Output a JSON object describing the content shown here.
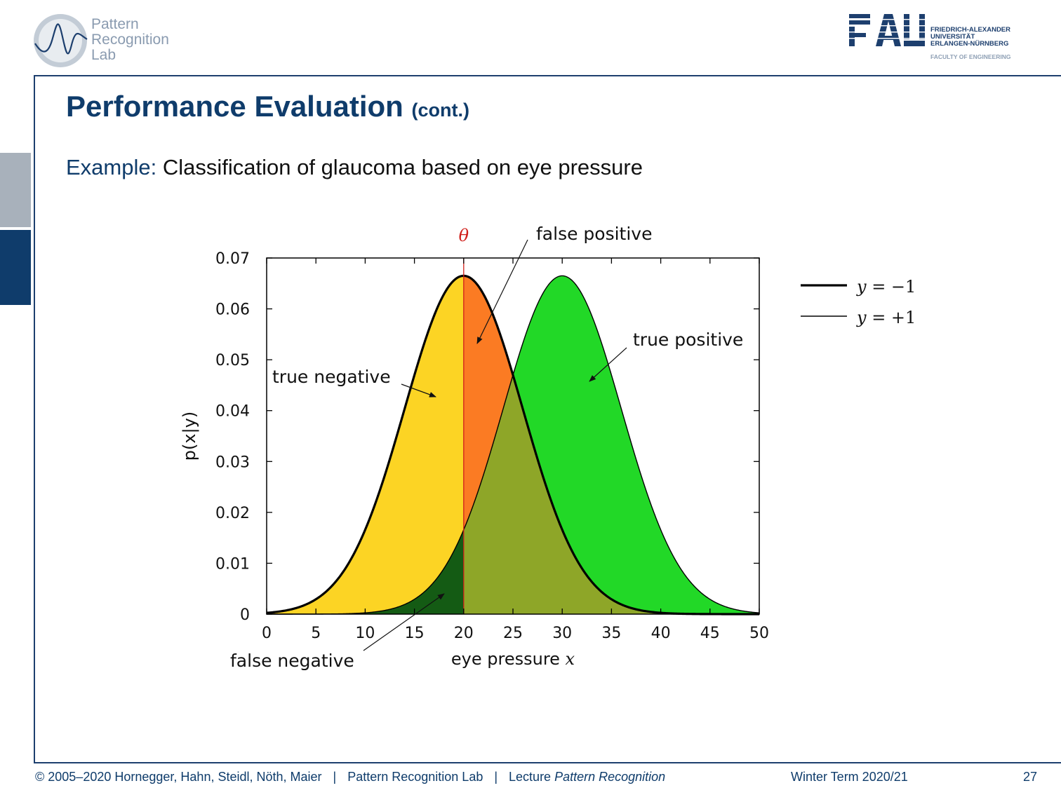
{
  "header": {
    "lab_logo_lines": [
      "Pattern",
      "Recognition",
      "Lab"
    ],
    "university_lines": [
      "FRIEDRICH-ALEXANDER",
      "UNIVERSITÄT",
      "ERLANGEN-NÜRNBERG"
    ],
    "faculty": "FACULTY OF ENGINEERING",
    "brand_color": "#0f3c6b"
  },
  "slide": {
    "title": "Performance Evaluation",
    "title_suffix": "(cont.)",
    "subtitle_label": "Example:",
    "subtitle_text": "Classification of glaucoma based on eye pressure"
  },
  "chart_data": {
    "type": "area",
    "xlabel": "eye pressure",
    "xlabel_var": "x",
    "ylabel": "p(x|y)",
    "xlim": [
      0,
      50
    ],
    "ylim": [
      0,
      0.07
    ],
    "x_ticks": [
      0,
      5,
      10,
      15,
      20,
      25,
      30,
      35,
      40,
      45,
      50
    ],
    "y_ticks": [
      0,
      0.01,
      0.02,
      0.03,
      0.04,
      0.05,
      0.06,
      0.07
    ],
    "y_tick_labels": [
      "0",
      "0.01",
      "0.02",
      "0.03",
      "0.04",
      "0.05",
      "0.06",
      "0.07"
    ],
    "grid": false,
    "threshold": {
      "label": "θ",
      "x": 20,
      "color": "#d0201b"
    },
    "series": [
      {
        "name": "y = −1",
        "distribution": "normal",
        "mean": 20,
        "std": 6,
        "peak": 0.0665
      },
      {
        "name": "y = +1",
        "distribution": "normal",
        "mean": 30,
        "std": 6,
        "peak": 0.0665
      }
    ],
    "regions": [
      {
        "name": "true negative",
        "color": "#fcd424"
      },
      {
        "name": "false positive",
        "color": "#fb7b23"
      },
      {
        "name": "true positive",
        "color": "#22d827"
      },
      {
        "name": "false negative",
        "color": "#145b14"
      },
      {
        "name": "overlap",
        "color": "#8ea628"
      }
    ],
    "annotations": [
      "true negative",
      "false positive",
      "true positive",
      "false negative"
    ],
    "legend": {
      "placement": "right",
      "entries": [
        {
          "var": "y",
          "eq": "=",
          "value": "−1"
        },
        {
          "var": "y",
          "eq": "=",
          "value": "+1"
        }
      ]
    }
  },
  "footer": {
    "copyright": "© 2005–2020 Hornegger, Hahn, Steidl, Nöth, Maier",
    "lab": "Pattern Recognition Lab",
    "lecture_prefix": "Lecture",
    "lecture_name": "Pattern Recognition",
    "term": "Winter Term 2020/21",
    "page_number": "27"
  }
}
